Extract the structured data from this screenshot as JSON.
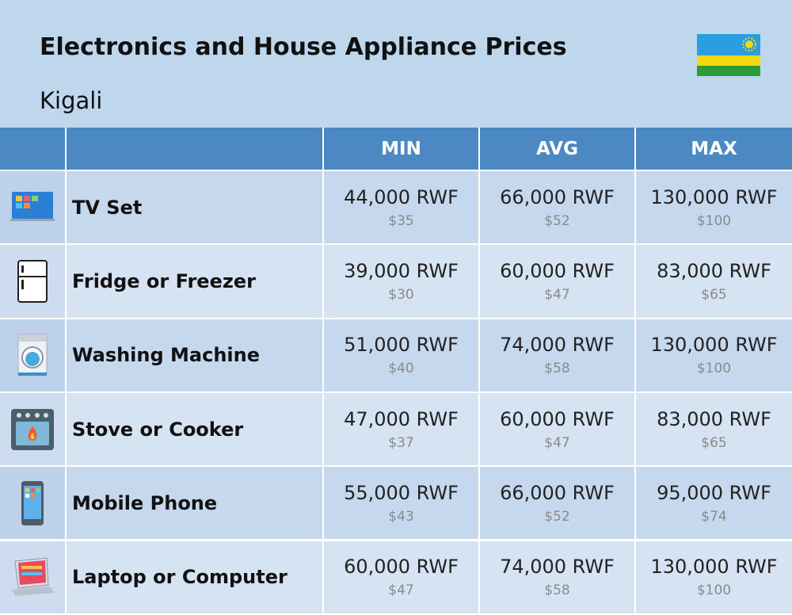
{
  "header": {
    "title": "Electronics and House Appliance Prices",
    "subtitle": "Kigali"
  },
  "table": {
    "columns": [
      "MIN",
      "AVG",
      "MAX"
    ],
    "rows": [
      {
        "name": "TV Set",
        "cells": [
          {
            "local": "44,000 RWF",
            "usd": "$35"
          },
          {
            "local": "66,000 RWF",
            "usd": "$52"
          },
          {
            "local": "130,000 RWF",
            "usd": "$100"
          }
        ]
      },
      {
        "name": "Fridge or Freezer",
        "cells": [
          {
            "local": "39,000 RWF",
            "usd": "$30"
          },
          {
            "local": "60,000 RWF",
            "usd": "$47"
          },
          {
            "local": "83,000 RWF",
            "usd": "$65"
          }
        ]
      },
      {
        "name": "Washing Machine",
        "cells": [
          {
            "local": "51,000 RWF",
            "usd": "$40"
          },
          {
            "local": "74,000 RWF",
            "usd": "$58"
          },
          {
            "local": "130,000 RWF",
            "usd": "$100"
          }
        ]
      },
      {
        "name": "Stove or Cooker",
        "cells": [
          {
            "local": "47,000 RWF",
            "usd": "$37"
          },
          {
            "local": "60,000 RWF",
            "usd": "$47"
          },
          {
            "local": "83,000 RWF",
            "usd": "$65"
          }
        ]
      },
      {
        "name": "Mobile Phone",
        "cells": [
          {
            "local": "55,000 RWF",
            "usd": "$43"
          },
          {
            "local": "66,000 RWF",
            "usd": "$52"
          },
          {
            "local": "95,000 RWF",
            "usd": "$74"
          }
        ]
      },
      {
        "name": "Laptop or Computer",
        "cells": [
          {
            "local": "60,000 RWF",
            "usd": "$47"
          },
          {
            "local": "74,000 RWF",
            "usd": "$58"
          },
          {
            "local": "130,000 RWF",
            "usd": "$100"
          }
        ]
      }
    ]
  }
}
